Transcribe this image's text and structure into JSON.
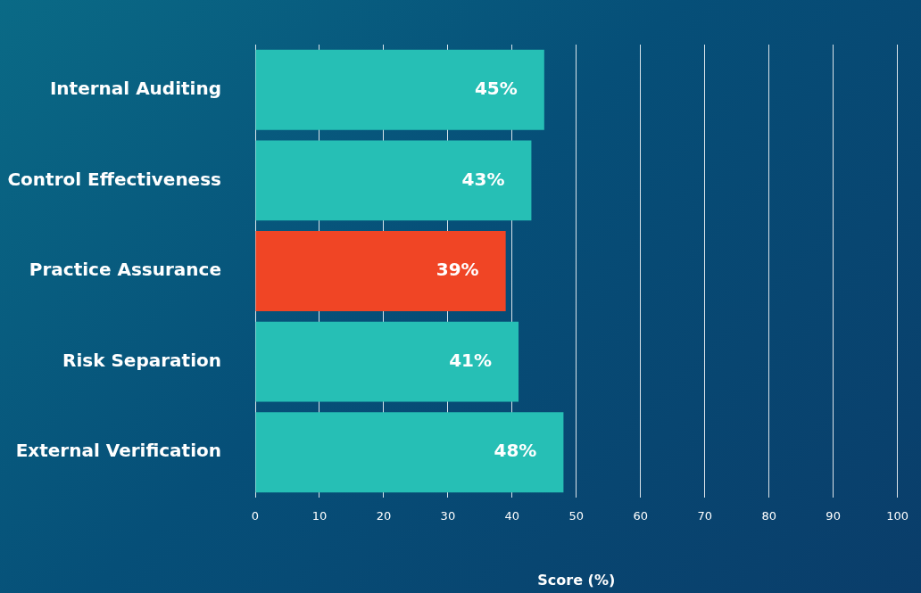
{
  "chart_data": {
    "type": "bar",
    "orientation": "horizontal",
    "categories": [
      "Internal Auditing",
      "Control Effectiveness",
      "Practice Assurance",
      "Risk Separation",
      "External Verification"
    ],
    "values": [
      45,
      43,
      39,
      41,
      48
    ],
    "colors": [
      "#26bfb5",
      "#26bfb5",
      "#f04525",
      "#26bfb5",
      "#26bfb5"
    ],
    "value_labels": [
      "45%",
      "43%",
      "39%",
      "41%",
      "48%"
    ],
    "xlabel": "Score (%)",
    "xlim": [
      0,
      100
    ],
    "xticks": [
      0,
      10,
      20,
      30,
      40,
      50,
      60,
      70,
      80,
      90,
      100
    ],
    "grid": "x",
    "legend": false
  }
}
